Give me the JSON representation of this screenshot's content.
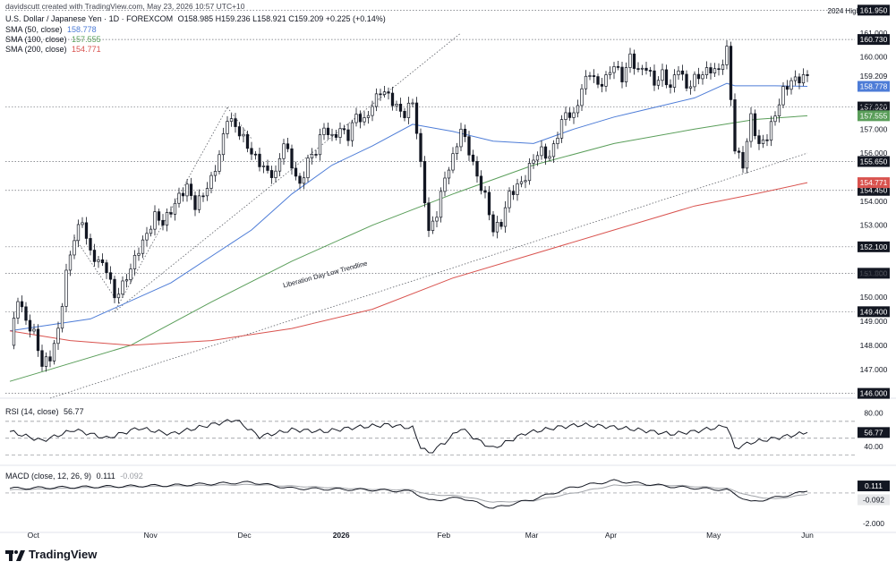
{
  "header": {
    "credit": "davidscutt created with TradingView.com, May 23, 2026 10:57 UTC+10",
    "symbol_line": "U.S. Dollar / Japanese Yen · 1D · FOREXCOM",
    "ohlc": "O158.985 H159.236 L158.921 C159.209 +0.225 (+0.14%)",
    "sma50_label": "SMA (50, close)",
    "sma50_value": "158.778",
    "sma100_label": "SMA (100, close)",
    "sma100_value": "157.555",
    "sma200_label": "SMA (200, close)",
    "sma200_value": "154.771"
  },
  "colors": {
    "sma50": "#4d7cd7",
    "sma100": "#5a9e5a",
    "sma200": "#d9534f",
    "candle": "#131722",
    "rsi": "#131722",
    "macd": "#131722",
    "signal": "#a0a3a8"
  },
  "annotations": {
    "trendline_label": "Liberation Day Low Trendline",
    "top_note": "2024 High"
  },
  "chart_data": {
    "type": "line",
    "title": "U.S. Dollar / Japanese Yen · 1D · FOREXCOM",
    "y_axis_ticks": [
      "161.000",
      "160.000",
      "158.000",
      "157.000",
      "156.000",
      "154.000",
      "153.000",
      "151.000",
      "150.000",
      "149.000",
      "148.000",
      "147.000"
    ],
    "ylim": [
      145.8,
      162.0
    ],
    "x_axis_ticks": [
      "Oct",
      "Nov",
      "Dec",
      "2026",
      "Feb",
      "Mar",
      "Apr",
      "May",
      "Jun"
    ],
    "horizontal_levels": [
      161.95,
      160.73,
      157.92,
      155.65,
      154.45,
      152.1,
      151.0,
      149.4,
      146.0
    ],
    "level_labels": [
      "161.950",
      "160.730",
      "157.920",
      "155.650",
      "154.450",
      "152.100",
      "151.000",
      "149.400",
      "146.000"
    ],
    "current_values": {
      "close": 159.209,
      "close_label": "159.209",
      "sma50": 158.778,
      "sma50_label": "158.778",
      "sma100": 157.555,
      "sma100_label": "157.555",
      "sma200": 154.771,
      "sma200_label": "154.771"
    },
    "price_path": [
      [
        0,
        148.0
      ],
      [
        2,
        150.0
      ],
      [
        4,
        149.0
      ],
      [
        6,
        148.5
      ],
      [
        8,
        147.2
      ],
      [
        10,
        147.5
      ],
      [
        12,
        148.6
      ],
      [
        14,
        151.0
      ],
      [
        16,
        152.5
      ],
      [
        18,
        153.2
      ],
      [
        20,
        151.8
      ],
      [
        22,
        151.5
      ],
      [
        24,
        151.2
      ],
      [
        26,
        150.0
      ],
      [
        28,
        150.5
      ],
      [
        30,
        151.2
      ],
      [
        32,
        152.0
      ],
      [
        34,
        152.6
      ],
      [
        36,
        153.4
      ],
      [
        38,
        153.1
      ],
      [
        40,
        153.6
      ],
      [
        42,
        154.2
      ],
      [
        44,
        154.6
      ],
      [
        46,
        153.8
      ],
      [
        48,
        154.3
      ],
      [
        50,
        154.9
      ],
      [
        52,
        155.9
      ],
      [
        54,
        157.5
      ],
      [
        56,
        157.1
      ],
      [
        58,
        156.6
      ],
      [
        60,
        156.0
      ],
      [
        62,
        155.6
      ],
      [
        64,
        155.2
      ],
      [
        66,
        155.1
      ],
      [
        68,
        156.5
      ],
      [
        70,
        155.5
      ],
      [
        72,
        154.6
      ],
      [
        74,
        155.7
      ],
      [
        76,
        156.1
      ],
      [
        78,
        157.1
      ],
      [
        80,
        156.6
      ],
      [
        82,
        157.0
      ],
      [
        84,
        156.7
      ],
      [
        86,
        157.6
      ],
      [
        88,
        157.3
      ],
      [
        90,
        158.0
      ],
      [
        92,
        158.6
      ],
      [
        94,
        158.4
      ],
      [
        96,
        157.9
      ],
      [
        98,
        157.6
      ],
      [
        100,
        158.2
      ],
      [
        102,
        155.5
      ],
      [
        104,
        152.7
      ],
      [
        106,
        153.5
      ],
      [
        108,
        155.0
      ],
      [
        110,
        155.8
      ],
      [
        112,
        157.0
      ],
      [
        114,
        156.1
      ],
      [
        116,
        155.0
      ],
      [
        118,
        154.2
      ],
      [
        120,
        152.8
      ],
      [
        122,
        153.1
      ],
      [
        124,
        154.3
      ],
      [
        126,
        154.6
      ],
      [
        128,
        155.0
      ],
      [
        130,
        155.8
      ],
      [
        132,
        156.1
      ],
      [
        134,
        155.8
      ],
      [
        136,
        156.8
      ],
      [
        138,
        157.7
      ],
      [
        140,
        157.5
      ],
      [
        142,
        158.7
      ],
      [
        144,
        159.4
      ],
      [
        146,
        158.8
      ],
      [
        148,
        159.1
      ],
      [
        150,
        159.7
      ],
      [
        152,
        159.1
      ],
      [
        154,
        160.0
      ],
      [
        156,
        159.4
      ],
      [
        158,
        159.6
      ],
      [
        160,
        158.9
      ],
      [
        162,
        159.3
      ],
      [
        164,
        158.7
      ],
      [
        166,
        159.6
      ],
      [
        168,
        158.7
      ],
      [
        170,
        159.1
      ],
      [
        172,
        159.3
      ],
      [
        174,
        159.5
      ],
      [
        176,
        159.4
      ],
      [
        178,
        160.3
      ],
      [
        180,
        156.2
      ],
      [
        182,
        155.5
      ],
      [
        184,
        157.5
      ],
      [
        186,
        156.3
      ],
      [
        188,
        156.7
      ],
      [
        190,
        157.6
      ],
      [
        192,
        158.6
      ],
      [
        194,
        159.0
      ],
      [
        196,
        159.1
      ],
      [
        198,
        159.2
      ]
    ],
    "series": [
      {
        "name": "SMA (50, close)",
        "points": [
          [
            0,
            148.6
          ],
          [
            20,
            149.1
          ],
          [
            40,
            150.6
          ],
          [
            60,
            152.8
          ],
          [
            70,
            154.3
          ],
          [
            80,
            155.5
          ],
          [
            90,
            156.3
          ],
          [
            100,
            157.2
          ],
          [
            110,
            156.9
          ],
          [
            120,
            156.5
          ],
          [
            130,
            156.4
          ],
          [
            140,
            157.0
          ],
          [
            150,
            157.5
          ],
          [
            160,
            157.9
          ],
          [
            170,
            158.3
          ],
          [
            178,
            158.9
          ],
          [
            180,
            158.8
          ],
          [
            190,
            158.8
          ],
          [
            198,
            158.778
          ]
        ]
      },
      {
        "name": "SMA (100, close)",
        "points": [
          [
            0,
            146.5
          ],
          [
            10,
            147.0
          ],
          [
            30,
            148.0
          ],
          [
            50,
            149.8
          ],
          [
            70,
            151.5
          ],
          [
            90,
            153.0
          ],
          [
            110,
            154.3
          ],
          [
            130,
            155.5
          ],
          [
            150,
            156.4
          ],
          [
            170,
            157.0
          ],
          [
            185,
            157.4
          ],
          [
            198,
            157.555
          ]
        ]
      },
      {
        "name": "SMA (200, close)",
        "points": [
          [
            0,
            148.6
          ],
          [
            15,
            148.2
          ],
          [
            30,
            148.0
          ],
          [
            50,
            148.2
          ],
          [
            70,
            148.7
          ],
          [
            90,
            149.5
          ],
          [
            110,
            150.8
          ],
          [
            130,
            151.8
          ],
          [
            150,
            152.8
          ],
          [
            170,
            153.8
          ],
          [
            185,
            154.3
          ],
          [
            198,
            154.771
          ]
        ]
      }
    ],
    "rsi": {
      "label": "RSI (14, close)",
      "value_label": "56.77",
      "ticks": [
        "80.00",
        "56.77",
        "40.00"
      ],
      "levels": [
        70,
        50,
        30
      ],
      "values": [
        [
          0,
          58
        ],
        [
          8,
          47
        ],
        [
          16,
          60
        ],
        [
          24,
          50
        ],
        [
          32,
          62
        ],
        [
          40,
          55
        ],
        [
          48,
          64
        ],
        [
          56,
          72
        ],
        [
          62,
          52
        ],
        [
          70,
          60
        ],
        [
          78,
          58
        ],
        [
          86,
          63
        ],
        [
          94,
          66
        ],
        [
          100,
          62
        ],
        [
          102,
          40
        ],
        [
          104,
          32
        ],
        [
          108,
          45
        ],
        [
          112,
          62
        ],
        [
          116,
          48
        ],
        [
          120,
          38
        ],
        [
          128,
          56
        ],
        [
          136,
          63
        ],
        [
          142,
          66
        ],
        [
          148,
          64
        ],
        [
          156,
          60
        ],
        [
          164,
          55
        ],
        [
          170,
          58
        ],
        [
          178,
          65
        ],
        [
          180,
          38
        ],
        [
          184,
          45
        ],
        [
          190,
          50
        ],
        [
          198,
          56.77
        ]
      ]
    },
    "macd": {
      "label": "MACD (close, 12, 26, 9)",
      "macd_value_label": "0.111",
      "signal_value_label": "-0.092",
      "ticks": [
        "0.111",
        "-0.092",
        "-2.000"
      ],
      "macd_values": [
        [
          0,
          0.3
        ],
        [
          20,
          0.4
        ],
        [
          40,
          0.5
        ],
        [
          60,
          0.7
        ],
        [
          70,
          0.3
        ],
        [
          90,
          0.2
        ],
        [
          100,
          0.1
        ],
        [
          104,
          -0.5
        ],
        [
          112,
          -0.3
        ],
        [
          120,
          -1.0
        ],
        [
          130,
          -0.4
        ],
        [
          140,
          0.4
        ],
        [
          150,
          0.8
        ],
        [
          165,
          0.4
        ],
        [
          178,
          0.2
        ],
        [
          184,
          -0.6
        ],
        [
          190,
          -0.3
        ],
        [
          198,
          0.111
        ]
      ],
      "signal_values": [
        [
          0,
          0.2
        ],
        [
          20,
          0.35
        ],
        [
          40,
          0.45
        ],
        [
          60,
          0.55
        ],
        [
          70,
          0.45
        ],
        [
          90,
          0.25
        ],
        [
          100,
          0.2
        ],
        [
          104,
          -0.1
        ],
        [
          112,
          -0.2
        ],
        [
          120,
          -0.6
        ],
        [
          130,
          -0.5
        ],
        [
          140,
          0.0
        ],
        [
          150,
          0.5
        ],
        [
          165,
          0.5
        ],
        [
          178,
          0.3
        ],
        [
          184,
          -0.2
        ],
        [
          190,
          -0.4
        ],
        [
          198,
          -0.092
        ]
      ]
    }
  },
  "footer": {
    "brand": "TradingView"
  }
}
